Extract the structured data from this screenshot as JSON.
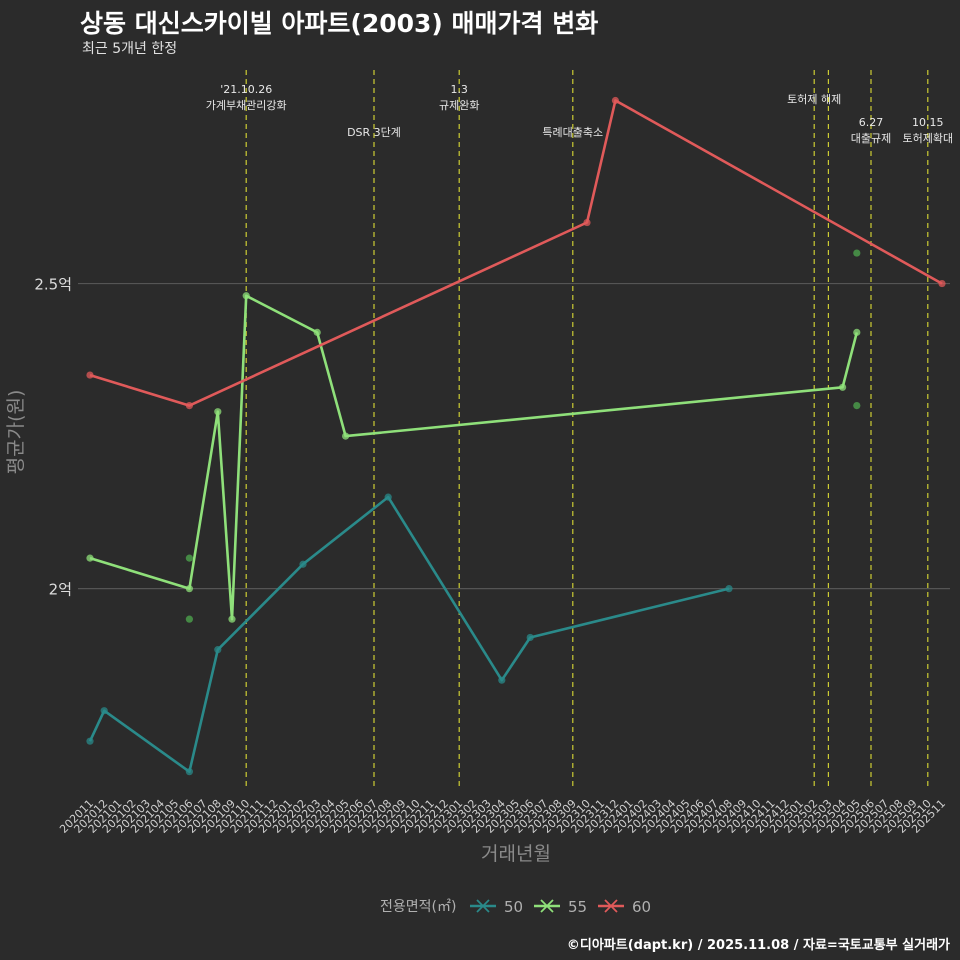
{
  "title": "상동 대신스카이빌 아파트(2003) 매매가격 변화",
  "subtitle": "최근 5개년 한정",
  "caption": "©디아파트(dapt.kr) / 2025.11.08 / 자료=국토교통부 실거래가",
  "colors": {
    "background": "#2b2b2b",
    "grid": "#555555",
    "event_line": "#cccc33",
    "s50": "#2a8a8a",
    "s55": "#8fe07a",
    "s60": "#e05a5a",
    "scatter": "#4a9a4a"
  },
  "chart_data": {
    "type": "line",
    "title": "상동 대신스카이빌 아파트(2003) 매매가격 변화",
    "xlabel": "거래년월",
    "ylabel": "평균가(원)",
    "ylim": [
      1.67,
      2.85
    ],
    "yticks": [
      {
        "value": 2.0,
        "label": "2억"
      },
      {
        "value": 2.5,
        "label": "2.5억"
      }
    ],
    "legend_title": "전용면적(㎡)",
    "legend_position": "bottom",
    "categories": [
      "202011",
      "202012",
      "202101",
      "202102",
      "202103",
      "202104",
      "202105",
      "202106",
      "202107",
      "202108",
      "202109",
      "202110",
      "202111",
      "202112",
      "202201",
      "202202",
      "202203",
      "202204",
      "202205",
      "202206",
      "202207",
      "202208",
      "202209",
      "202210",
      "202211",
      "202212",
      "202301",
      "202302",
      "202303",
      "202304",
      "202305",
      "202306",
      "202307",
      "202308",
      "202309",
      "202310",
      "202311",
      "202312",
      "202401",
      "202402",
      "202403",
      "202404",
      "202405",
      "202406",
      "202407",
      "202408",
      "202409",
      "202410",
      "202411",
      "202412",
      "202501",
      "202502",
      "202503",
      "202504",
      "202505",
      "202506",
      "202507",
      "202508",
      "202509",
      "202510",
      "202511"
    ],
    "series": [
      {
        "name": "50",
        "color": "#2a8a8a",
        "points": [
          {
            "x": "202011",
            "y": 1.75
          },
          {
            "x": "202012",
            "y": 1.8
          },
          {
            "x": "202106",
            "y": 1.7
          },
          {
            "x": "202108",
            "y": 1.9
          },
          {
            "x": "202202",
            "y": 2.04
          },
          {
            "x": "202208",
            "y": 2.15
          },
          {
            "x": "202304",
            "y": 1.85
          },
          {
            "x": "202306",
            "y": 1.92
          },
          {
            "x": "202408",
            "y": 2.0
          }
        ]
      },
      {
        "name": "55",
        "color": "#8fe07a",
        "points": [
          {
            "x": "202011",
            "y": 2.05
          },
          {
            "x": "202106",
            "y": 2.0
          },
          {
            "x": "202108",
            "y": 2.29
          },
          {
            "x": "202109",
            "y": 1.95
          },
          {
            "x": "202110",
            "y": 2.48
          },
          {
            "x": "202203",
            "y": 2.42
          },
          {
            "x": "202205",
            "y": 2.25
          },
          {
            "x": "202504",
            "y": 2.33
          },
          {
            "x": "202505",
            "y": 2.42
          }
        ]
      },
      {
        "name": "60",
        "color": "#e05a5a",
        "points": [
          {
            "x": "202011",
            "y": 2.35
          },
          {
            "x": "202106",
            "y": 2.3
          },
          {
            "x": "202310",
            "y": 2.6
          },
          {
            "x": "202312",
            "y": 2.8
          },
          {
            "x": "202511",
            "y": 2.5
          }
        ]
      }
    ],
    "scatter_points": [
      {
        "x": "202106",
        "y": 2.05
      },
      {
        "x": "202106",
        "y": 1.95
      },
      {
        "x": "202505",
        "y": 2.55
      },
      {
        "x": "202505",
        "y": 2.3
      }
    ],
    "events": [
      {
        "x": "202110",
        "label1": "'21.10.26",
        "label2": "가계부채관리강화",
        "row": 1
      },
      {
        "x": "202207",
        "label1": "",
        "label2": "DSR 3단계",
        "row": 2
      },
      {
        "x": "202301",
        "label1": "1.3",
        "label2": "규제완화",
        "row": 1
      },
      {
        "x": "202309",
        "label1": "",
        "label2": "특례대출축소",
        "row": 2
      },
      {
        "x": "202502",
        "label1": "",
        "label2": "토허제 해제",
        "row": 1
      },
      {
        "x": "202503",
        "label1": "",
        "label2": "",
        "row": 1
      },
      {
        "x": "202506",
        "label1": "6.27",
        "label2": "대출규제",
        "row": 2
      },
      {
        "x": "202510",
        "label1": "10.15",
        "label2": "토허제확대",
        "row": 2
      }
    ]
  }
}
